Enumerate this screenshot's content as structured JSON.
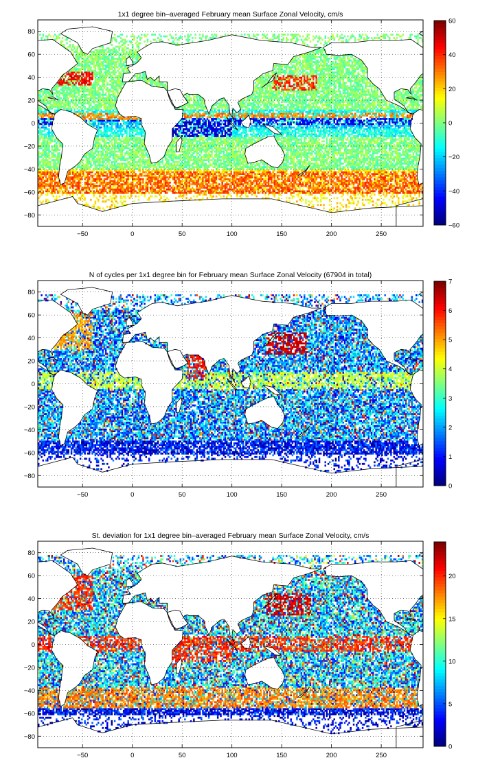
{
  "chart_data": [
    {
      "type": "heatmap",
      "title": "1x1 degree bin–averaged February mean Surface Zonal Velocity, cm/s",
      "xlabel": "",
      "ylabel": "",
      "xlim": [
        -95,
        292
      ],
      "ylim": [
        -90,
        90
      ],
      "x_ticks": [
        -50,
        0,
        50,
        100,
        150,
        200,
        250
      ],
      "x_tick_labels": [
        "−50",
        "0",
        "50",
        "100",
        "150",
        "200",
        "250"
      ],
      "y_ticks": [
        -80,
        -60,
        -40,
        -20,
        0,
        20,
        40,
        60,
        80
      ],
      "y_tick_labels": [
        "−80",
        "−60",
        "−40",
        "−20",
        "0",
        "20",
        "40",
        "60",
        "80"
      ],
      "grid": true,
      "colormap": "jet",
      "colorbar": {
        "range": [
          -60,
          60
        ],
        "ticks": [
          -60,
          -40,
          -20,
          0,
          20,
          40,
          60
        ],
        "tick_labels": [
          "−60",
          "−40",
          "−20",
          "0",
          "20",
          "40",
          "60"
        ]
      },
      "features": [
        {
          "x": [
            -170,
            292
          ],
          "y": [
            -2,
            8
          ],
          "value": -45
        },
        {
          "x": [
            -170,
            292
          ],
          "y": [
            -5,
            -2
          ],
          "value": -25
        },
        {
          "x": [
            -60,
            25
          ],
          "y": [
            -3,
            2
          ],
          "value": -25
        },
        {
          "x": [
            40,
            100
          ],
          "y": [
            -12,
            2
          ],
          "value": -50
        },
        {
          "x": [
            -170,
            292
          ],
          "y": [
            4,
            9
          ],
          "value": 30
        },
        {
          "x": [
            -50,
            15
          ],
          "y": [
            3,
            8
          ],
          "value": 30
        },
        {
          "x": [
            -170,
            292
          ],
          "y": [
            -62,
            -42
          ],
          "value": 35
        },
        {
          "x": [
            140,
            185
          ],
          "y": [
            28,
            42
          ],
          "value": 40
        },
        {
          "x": [
            -75,
            -40
          ],
          "y": [
            33,
            45
          ],
          "value": 45
        }
      ]
    },
    {
      "type": "heatmap",
      "title": "N of cycles per 1x1 degree bin for February mean Surface Zonal Velocity (67904 in total)",
      "xlabel": "",
      "ylabel": "",
      "xlim": [
        -95,
        292
      ],
      "ylim": [
        -90,
        90
      ],
      "x_ticks": [
        -50,
        0,
        50,
        100,
        150,
        200,
        250
      ],
      "x_tick_labels": [
        "−50",
        "0",
        "50",
        "100",
        "150",
        "200",
        "250"
      ],
      "y_ticks": [
        -80,
        -60,
        -40,
        -20,
        0,
        20,
        40,
        60,
        80
      ],
      "y_tick_labels": [
        "−80",
        "−60",
        "−40",
        "−20",
        "0",
        "20",
        "40",
        "60",
        "80"
      ],
      "grid": true,
      "colormap": "jet",
      "colorbar": {
        "range": [
          0,
          7
        ],
        "ticks": [
          0,
          1,
          2,
          3,
          4,
          5,
          6,
          7
        ],
        "tick_labels": [
          "0",
          "1",
          "2",
          "3",
          "4",
          "5",
          "6",
          "7"
        ]
      },
      "total_cycles": 67904,
      "features": [
        {
          "x": [
            135,
            175
          ],
          "y": [
            25,
            45
          ],
          "value": 6.5
        },
        {
          "x": [
            -80,
            -40
          ],
          "y": [
            30,
            62
          ],
          "value": 5
        },
        {
          "x": [
            -170,
            292
          ],
          "y": [
            -5,
            10
          ],
          "value": 4
        },
        {
          "x": [
            55,
            75
          ],
          "y": [
            5,
            25
          ],
          "value": 6
        }
      ]
    },
    {
      "type": "heatmap",
      "title": "St. deviation for 1x1 degree bin–averaged February mean Surface Zonal Velocity, cm/s",
      "xlabel": "",
      "ylabel": "",
      "xlim": [
        -95,
        292
      ],
      "ylim": [
        -90,
        90
      ],
      "x_ticks": [
        -50,
        0,
        50,
        100,
        150,
        200,
        250
      ],
      "x_tick_labels": [
        "−50",
        "0",
        "50",
        "100",
        "150",
        "200",
        "250"
      ],
      "y_ticks": [
        -80,
        -60,
        -40,
        -20,
        0,
        20,
        40,
        60,
        80
      ],
      "y_tick_labels": [
        "−80",
        "−60",
        "−40",
        "−20",
        "0",
        "20",
        "40",
        "60",
        "80"
      ],
      "grid": true,
      "colormap": "jet",
      "colorbar": {
        "range": [
          0,
          24
        ],
        "ticks": [
          0,
          5,
          10,
          15,
          20
        ],
        "tick_labels": [
          "0",
          "5",
          "10",
          "15",
          "20"
        ]
      },
      "features": [
        {
          "x": [
            135,
            180
          ],
          "y": [
            25,
            45
          ],
          "value": 22
        },
        {
          "x": [
            -80,
            -40
          ],
          "y": [
            30,
            60
          ],
          "value": 20
        },
        {
          "x": [
            -170,
            292
          ],
          "y": [
            -6,
            8
          ],
          "value": 20
        },
        {
          "x": [
            40,
            100
          ],
          "y": [
            -15,
            5
          ],
          "value": 20
        },
        {
          "x": [
            -170,
            292
          ],
          "y": [
            -55,
            -38
          ],
          "value": 18
        }
      ]
    }
  ]
}
